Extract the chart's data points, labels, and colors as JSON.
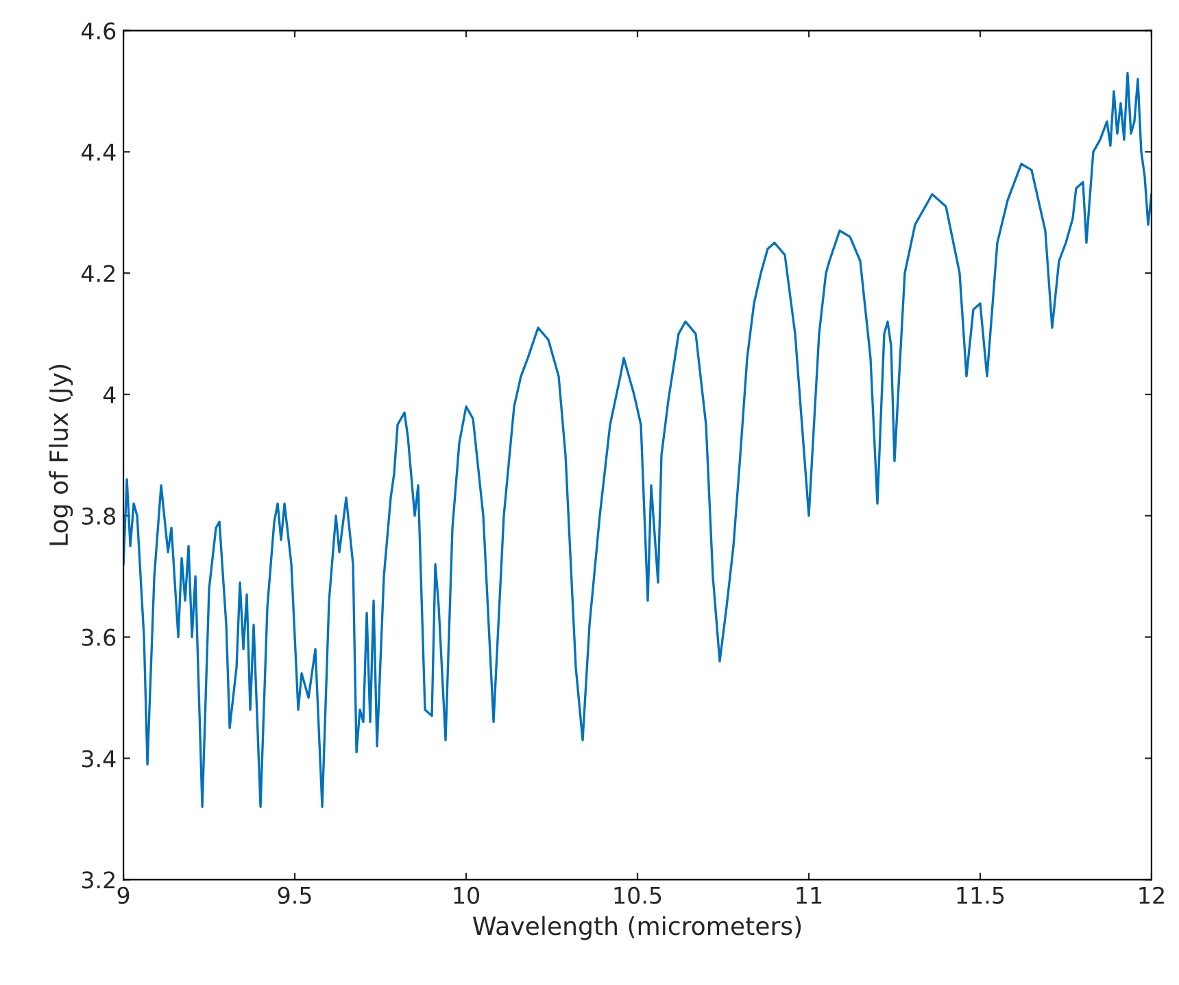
{
  "chart_data": {
    "type": "line",
    "xlabel": "Wavelength (micrometers)",
    "ylabel": "Log of Flux (Jy)",
    "xlim": [
      9,
      12
    ],
    "xticks": [
      9,
      9.5,
      10,
      10.5,
      11,
      11.5,
      12
    ],
    "ylim": [
      3.2,
      4.6
    ],
    "yticks": [
      3.2,
      3.4,
      3.6,
      3.8,
      4,
      4.2,
      4.4,
      4.6
    ],
    "series": [
      {
        "color": "#0072bd",
        "x": [
          9.0,
          9.01,
          9.02,
          9.03,
          9.04,
          9.06,
          9.07,
          9.09,
          9.11,
          9.13,
          9.14,
          9.16,
          9.17,
          9.18,
          9.19,
          9.2,
          9.21,
          9.23,
          9.25,
          9.27,
          9.28,
          9.3,
          9.31,
          9.33,
          9.34,
          9.35,
          9.36,
          9.37,
          9.38,
          9.4,
          9.42,
          9.44,
          9.45,
          9.46,
          9.47,
          9.49,
          9.51,
          9.52,
          9.54,
          9.56,
          9.58,
          9.6,
          9.62,
          9.63,
          9.65,
          9.67,
          9.68,
          9.69,
          9.7,
          9.71,
          9.72,
          9.73,
          9.74,
          9.76,
          9.78,
          9.79,
          9.8,
          9.82,
          9.83,
          9.85,
          9.86,
          9.88,
          9.9,
          9.91,
          9.92,
          9.94,
          9.96,
          9.98,
          10.0,
          10.02,
          10.05,
          10.08,
          10.11,
          10.14,
          10.16,
          10.18,
          10.21,
          10.24,
          10.27,
          10.29,
          10.32,
          10.34,
          10.36,
          10.39,
          10.42,
          10.45,
          10.46,
          10.48,
          10.49,
          10.51,
          10.53,
          10.54,
          10.56,
          10.57,
          10.59,
          10.62,
          10.64,
          10.67,
          10.7,
          10.72,
          10.74,
          10.76,
          10.78,
          10.8,
          10.82,
          10.84,
          10.86,
          10.88,
          10.9,
          10.93,
          10.96,
          10.98,
          11.0,
          11.03,
          11.05,
          11.06,
          11.09,
          11.12,
          11.15,
          11.18,
          11.2,
          11.22,
          11.23,
          11.24,
          11.25,
          11.28,
          11.31,
          11.36,
          11.4,
          11.44,
          11.46,
          11.48,
          11.5,
          11.52,
          11.55,
          11.58,
          11.62,
          11.65,
          11.69,
          11.71,
          11.73,
          11.75,
          11.77,
          11.78,
          11.8,
          11.81,
          11.83,
          11.85,
          11.87,
          11.88,
          11.89,
          11.9,
          11.91,
          11.92,
          11.93,
          11.94,
          11.95,
          11.96,
          11.97,
          11.98,
          11.99,
          12.0
        ],
        "values": [
          3.72,
          3.86,
          3.75,
          3.82,
          3.8,
          3.6,
          3.39,
          3.7,
          3.85,
          3.74,
          3.78,
          3.6,
          3.73,
          3.66,
          3.75,
          3.6,
          3.7,
          3.32,
          3.68,
          3.78,
          3.79,
          3.62,
          3.45,
          3.55,
          3.69,
          3.58,
          3.67,
          3.48,
          3.62,
          3.32,
          3.65,
          3.79,
          3.82,
          3.76,
          3.82,
          3.72,
          3.48,
          3.54,
          3.5,
          3.58,
          3.32,
          3.66,
          3.8,
          3.74,
          3.83,
          3.72,
          3.41,
          3.48,
          3.46,
          3.64,
          3.46,
          3.66,
          3.42,
          3.7,
          3.83,
          3.87,
          3.95,
          3.97,
          3.93,
          3.8,
          3.85,
          3.48,
          3.47,
          3.72,
          3.65,
          3.43,
          3.78,
          3.92,
          3.98,
          3.96,
          3.8,
          3.46,
          3.8,
          3.98,
          4.03,
          4.06,
          4.11,
          4.09,
          4.03,
          3.9,
          3.55,
          3.43,
          3.62,
          3.8,
          3.95,
          4.03,
          4.06,
          4.02,
          4.0,
          3.95,
          3.66,
          3.85,
          3.69,
          3.9,
          3.99,
          4.1,
          4.12,
          4.1,
          3.95,
          3.7,
          3.56,
          3.65,
          3.75,
          3.9,
          4.06,
          4.15,
          4.2,
          4.24,
          4.25,
          4.23,
          4.1,
          3.95,
          3.8,
          4.1,
          4.2,
          4.22,
          4.27,
          4.26,
          4.22,
          4.06,
          3.82,
          4.1,
          4.12,
          4.08,
          3.89,
          4.2,
          4.28,
          4.33,
          4.31,
          4.2,
          4.03,
          4.14,
          4.15,
          4.03,
          4.25,
          4.32,
          4.38,
          4.37,
          4.27,
          4.11,
          4.22,
          4.25,
          4.29,
          4.34,
          4.35,
          4.25,
          4.4,
          4.42,
          4.45,
          4.41,
          4.5,
          4.43,
          4.48,
          4.42,
          4.53,
          4.43,
          4.45,
          4.52,
          4.4,
          4.36,
          4.28,
          4.33
        ]
      }
    ]
  }
}
